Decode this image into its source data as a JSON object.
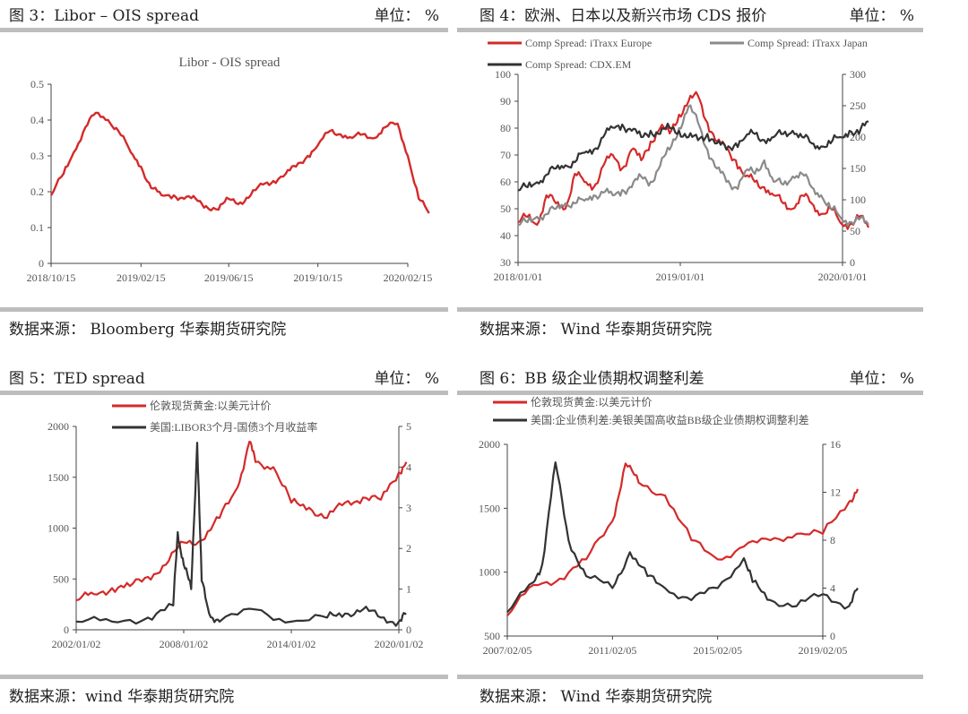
{
  "panels": [
    {
      "header": {
        "title": "图 3：Libor – OIS spread",
        "unit": "单位：  %"
      },
      "source": "数据来源：  Bloomberg  华泰期货研究院"
    },
    {
      "header": {
        "title": "图 4：欧洲、日本以及新兴市场 CDS 报价",
        "unit": "单位：   %"
      },
      "source": "数据来源：    Wind  华泰期货研究院"
    },
    {
      "header": {
        "title": "图 5：TED spread",
        "unit": "单位：  %"
      },
      "source": "数据来源：wind  华泰期货研究院"
    },
    {
      "header": {
        "title": "图 6：BB 级企业债期权调整利差",
        "unit": "单位：   %"
      },
      "source": "数据来源：    Wind  华泰期货研究院"
    }
  ],
  "chart_data": [
    {
      "type": "line",
      "title": "Libor - OIS spread",
      "x_ticks": [
        "2018/10/15",
        "2019/02/15",
        "2019/06/15",
        "2019/10/15",
        "2020/02/15"
      ],
      "ylim": [
        0,
        0.5
      ],
      "y_ticks": [
        "0",
        "0.1",
        "0.2",
        "0.3",
        "0.4",
        "0.5"
      ],
      "series": [
        {
          "name": "",
          "color": "#d42a2a",
          "x": [
            "2018/10/15",
            "2018/11/01",
            "2018/11/15",
            "2018/12/01",
            "2018/12/15",
            "2019/01/01",
            "2019/01/15",
            "2019/02/01",
            "2019/02/15",
            "2019/03/01",
            "2019/03/15",
            "2019/04/01",
            "2019/04/15",
            "2019/05/01",
            "2019/05/15",
            "2019/06/01",
            "2019/06/15",
            "2019/07/01",
            "2019/07/15",
            "2019/08/01",
            "2019/08/15",
            "2019/09/01",
            "2019/09/15",
            "2019/10/01",
            "2019/10/15",
            "2019/11/01",
            "2019/11/15",
            "2019/12/01",
            "2019/12/15",
            "2020/01/01",
            "2020/01/15",
            "2020/02/01",
            "2020/02/15",
            "2020/03/01",
            "2020/03/15"
          ],
          "values": [
            0.19,
            0.25,
            0.31,
            0.38,
            0.42,
            0.4,
            0.37,
            0.31,
            0.27,
            0.21,
            0.19,
            0.19,
            0.18,
            0.18,
            0.16,
            0.15,
            0.18,
            0.17,
            0.19,
            0.22,
            0.23,
            0.25,
            0.27,
            0.3,
            0.33,
            0.37,
            0.36,
            0.35,
            0.36,
            0.35,
            0.38,
            0.39,
            0.3,
            0.18,
            0.14
          ]
        }
      ]
    },
    {
      "type": "line",
      "x_ticks": [
        "2018/01/01",
        "2019/01/01",
        "2020/01/01"
      ],
      "ylim": [
        30,
        100
      ],
      "y_ticks": [
        "30",
        "40",
        "50",
        "60",
        "70",
        "80",
        "90",
        "100"
      ],
      "y2lim": [
        0,
        300
      ],
      "y2_ticks": [
        "0",
        "50",
        "100",
        "150",
        "200",
        "250",
        "300"
      ],
      "series": [
        {
          "name": "Comp Spread: iTraxx Europe",
          "color": "#d42a2a",
          "axis": "left",
          "values": [
            45,
            47,
            44,
            55,
            52,
            50,
            63,
            60,
            58,
            66,
            70,
            65,
            72,
            68,
            75,
            80,
            78,
            85,
            90,
            92,
            82,
            75,
            72,
            68,
            62,
            60,
            58,
            55,
            52,
            50,
            55,
            52,
            48,
            50,
            45,
            44,
            47,
            43
          ]
        },
        {
          "name": "Comp Spread: iTraxx Japan",
          "color": "#8a8a8a",
          "axis": "left",
          "values": [
            44,
            45,
            47,
            48,
            50,
            52,
            52,
            53,
            55,
            56,
            55,
            57,
            58,
            62,
            60,
            66,
            72,
            80,
            88,
            82,
            72,
            65,
            60,
            58,
            64,
            63,
            68,
            60,
            59,
            62,
            63,
            58,
            55,
            50,
            47,
            45,
            46,
            44
          ]
        },
        {
          "name": "Comp Spread: CDX.EM",
          "color": "#333333",
          "axis": "right",
          "values": [
            115,
            120,
            128,
            140,
            150,
            155,
            160,
            175,
            180,
            200,
            215,
            220,
            210,
            200,
            210,
            205,
            215,
            210,
            200,
            195,
            205,
            190,
            180,
            190,
            200,
            205,
            195,
            200,
            205,
            210,
            200,
            190,
            185,
            190,
            200,
            210,
            205,
            225
          ]
        }
      ],
      "legend": "top"
    },
    {
      "type": "line",
      "x_ticks": [
        "2002/01/02",
        "2008/01/02",
        "2014/01/02",
        "2020/01/02"
      ],
      "ylim": [
        0,
        2000
      ],
      "y_ticks": [
        "0",
        "500",
        "1000",
        "1500",
        "2000"
      ],
      "y2lim": [
        0,
        5
      ],
      "y2_ticks": [
        "0",
        "1",
        "2",
        "3",
        "4",
        "5"
      ],
      "series": [
        {
          "name": "伦敦现货黄金:以美元计价",
          "color": "#d42a2a",
          "axis": "left",
          "x": [
            "2002/01/02",
            "2003/01/02",
            "2004/01/02",
            "2005/01/02",
            "2006/01/02",
            "2007/01/02",
            "2008/01/02",
            "2009/01/02",
            "2010/01/02",
            "2011/01/02",
            "2011/09/02",
            "2012/01/02",
            "2013/01/02",
            "2014/01/02",
            "2015/01/02",
            "2016/01/02",
            "2017/01/02",
            "2018/01/02",
            "2019/01/02",
            "2020/01/02",
            "2020/06/02"
          ],
          "values": [
            290,
            350,
            410,
            430,
            520,
            640,
            860,
            880,
            1100,
            1400,
            1850,
            1650,
            1600,
            1250,
            1200,
            1100,
            1250,
            1300,
            1280,
            1550,
            1650
          ]
        },
        {
          "name": "美国:LIBOR3个月-国债3个月收益率",
          "color": "#333333",
          "axis": "right",
          "x": [
            "2002/01/02",
            "2004/01/02",
            "2006/01/02",
            "2007/06/02",
            "2007/09/02",
            "2008/01/02",
            "2008/06/02",
            "2008/10/02",
            "2009/01/02",
            "2009/06/02",
            "2010/01/02",
            "2012/01/02",
            "2014/01/02",
            "2016/01/02",
            "2017/01/02",
            "2018/01/02",
            "2019/01/02",
            "2020/01/02",
            "2020/06/02"
          ],
          "values": [
            0.2,
            0.2,
            0.3,
            0.6,
            2.4,
            1.6,
            1.0,
            4.6,
            1.2,
            0.4,
            0.2,
            0.5,
            0.2,
            0.3,
            0.4,
            0.5,
            0.3,
            0.2,
            0.4
          ]
        }
      ],
      "legend": "top"
    },
    {
      "type": "line",
      "x_ticks": [
        "2007/02/05",
        "2011/02/05",
        "2015/02/05",
        "2019/02/05"
      ],
      "ylim": [
        500,
        2000
      ],
      "y_ticks": [
        "500",
        "1000",
        "1500",
        "2000"
      ],
      "y2lim": [
        0,
        16
      ],
      "y2_ticks": [
        "0",
        "4",
        "8",
        "12",
        "16"
      ],
      "series": [
        {
          "name": "伦敦现货黄金:以美元计价",
          "color": "#d42a2a",
          "axis": "left",
          "x": [
            "2007/02/05",
            "2008/02/05",
            "2009/02/05",
            "2010/02/05",
            "2011/02/05",
            "2011/08/05",
            "2012/02/05",
            "2013/02/05",
            "2014/02/05",
            "2015/02/05",
            "2016/02/05",
            "2017/02/05",
            "2018/02/05",
            "2019/02/05",
            "2020/02/05",
            "2020/06/05"
          ],
          "values": [
            660,
            900,
            950,
            1100,
            1400,
            1850,
            1700,
            1600,
            1250,
            1100,
            1200,
            1250,
            1300,
            1300,
            1550,
            1650
          ]
        },
        {
          "name": "美国:企业债利差:美银美国高收益BB级企业债期权调整利差",
          "color": "#333333",
          "axis": "right",
          "x": [
            "2007/02/05",
            "2008/02/05",
            "2008/06/05",
            "2008/12/05",
            "2009/06/05",
            "2010/02/05",
            "2011/02/05",
            "2011/10/05",
            "2012/06/05",
            "2013/02/05",
            "2014/02/05",
            "2015/02/05",
            "2016/02/05",
            "2016/06/05",
            "2017/02/05",
            "2018/02/05",
            "2019/02/05",
            "2020/02/05",
            "2020/06/05"
          ],
          "values": [
            2.0,
            4.5,
            6.0,
            14.5,
            8.0,
            5.0,
            4.0,
            7.0,
            5.0,
            4.0,
            3.0,
            4.0,
            6.5,
            4.5,
            3.0,
            2.5,
            3.5,
            2.5,
            4.0
          ]
        }
      ],
      "legend": "top"
    }
  ]
}
